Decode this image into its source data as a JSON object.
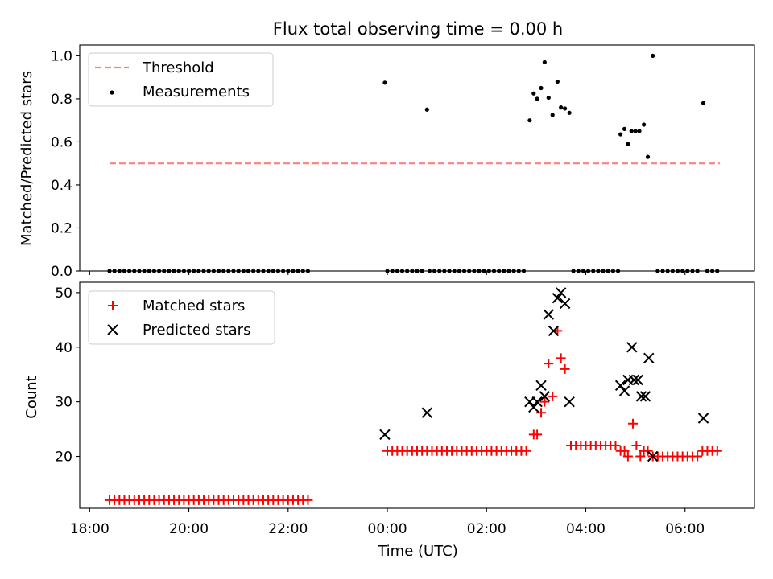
{
  "figure": {
    "title": "Flux total observing time = 0.00 h",
    "xlabel": "Time (UTC)",
    "x_ticks": [
      "18:00",
      "20:00",
      "22:00",
      "00:00",
      "02:00",
      "04:00",
      "06:00"
    ]
  },
  "chart_data": [
    {
      "type": "scatter",
      "title": "Flux total observing time = 0.00 h",
      "xlabel": "Time (UTC)",
      "ylabel": "Matched/Predicted stars",
      "x_unit": "hours after 18:00 UTC",
      "xlim": [
        17.8,
        31.4
      ],
      "ylim": [
        0.0,
        1.05
      ],
      "yticks": [
        0.0,
        0.2,
        0.4,
        0.6,
        0.8,
        1.0
      ],
      "ytick_labels": [
        "0.0",
        "0.2",
        "0.4",
        "0.6",
        "0.8",
        "1.0"
      ],
      "legend": {
        "location": "upper-left",
        "entries": [
          "Threshold",
          "Measurements"
        ]
      },
      "threshold": {
        "name": "Threshold",
        "style": "dashed",
        "color": "#ff7f7f",
        "y": 0.5,
        "x_range": [
          18.4,
          30.7
        ]
      },
      "series": [
        {
          "name": "Measurements",
          "color": "#000000",
          "points": [
            [
              18.4,
              0
            ],
            [
              18.5,
              0
            ],
            [
              18.6,
              0
            ],
            [
              18.7,
              0
            ],
            [
              18.8,
              0
            ],
            [
              18.9,
              0
            ],
            [
              19.0,
              0
            ],
            [
              19.1,
              0
            ],
            [
              19.2,
              0
            ],
            [
              19.3,
              0
            ],
            [
              19.4,
              0
            ],
            [
              19.5,
              0
            ],
            [
              19.6,
              0
            ],
            [
              19.7,
              0
            ],
            [
              19.8,
              0
            ],
            [
              19.9,
              0
            ],
            [
              20.0,
              0
            ],
            [
              20.1,
              0
            ],
            [
              20.2,
              0
            ],
            [
              20.3,
              0
            ],
            [
              20.4,
              0
            ],
            [
              20.5,
              0
            ],
            [
              20.6,
              0
            ],
            [
              20.7,
              0
            ],
            [
              20.8,
              0
            ],
            [
              20.9,
              0
            ],
            [
              21.0,
              0
            ],
            [
              21.1,
              0
            ],
            [
              21.2,
              0
            ],
            [
              21.3,
              0
            ],
            [
              21.4,
              0
            ],
            [
              21.5,
              0
            ],
            [
              21.6,
              0
            ],
            [
              21.7,
              0
            ],
            [
              21.8,
              0
            ],
            [
              21.9,
              0
            ],
            [
              22.0,
              0
            ],
            [
              22.1,
              0
            ],
            [
              22.2,
              0
            ],
            [
              22.3,
              0
            ],
            [
              22.4,
              0
            ],
            [
              23.95,
              0.875
            ],
            [
              24.0,
              0
            ],
            [
              24.1,
              0
            ],
            [
              24.2,
              0
            ],
            [
              24.3,
              0
            ],
            [
              24.4,
              0
            ],
            [
              24.5,
              0
            ],
            [
              24.6,
              0
            ],
            [
              24.7,
              0
            ],
            [
              24.8,
              0.75
            ],
            [
              24.85,
              0
            ],
            [
              24.95,
              0
            ],
            [
              25.05,
              0
            ],
            [
              25.15,
              0
            ],
            [
              25.25,
              0
            ],
            [
              25.35,
              0
            ],
            [
              25.45,
              0
            ],
            [
              25.55,
              0
            ],
            [
              25.65,
              0
            ],
            [
              25.75,
              0
            ],
            [
              25.85,
              0
            ],
            [
              25.95,
              0
            ],
            [
              26.05,
              0
            ],
            [
              26.15,
              0
            ],
            [
              26.25,
              0
            ],
            [
              26.35,
              0
            ],
            [
              26.45,
              0
            ],
            [
              26.55,
              0
            ],
            [
              26.65,
              0
            ],
            [
              26.75,
              0
            ],
            [
              26.87,
              0.7
            ],
            [
              26.95,
              0.825
            ],
            [
              27.02,
              0.8
            ],
            [
              27.1,
              0.85
            ],
            [
              27.17,
              0.97
            ],
            [
              27.25,
              0.805
            ],
            [
              27.33,
              0.725
            ],
            [
              27.43,
              0.88
            ],
            [
              27.5,
              0.76
            ],
            [
              27.58,
              0.755
            ],
            [
              27.67,
              0.735
            ],
            [
              27.75,
              0
            ],
            [
              27.85,
              0
            ],
            [
              27.95,
              0
            ],
            [
              28.05,
              0
            ],
            [
              28.15,
              0
            ],
            [
              28.25,
              0
            ],
            [
              28.35,
              0
            ],
            [
              28.45,
              0
            ],
            [
              28.55,
              0
            ],
            [
              28.65,
              0
            ],
            [
              28.7,
              0.635
            ],
            [
              28.78,
              0.66
            ],
            [
              28.85,
              0.59
            ],
            [
              28.92,
              0.65
            ],
            [
              29.0,
              0.65
            ],
            [
              29.08,
              0.65
            ],
            [
              29.17,
              0.68
            ],
            [
              29.25,
              0.53
            ],
            [
              29.35,
              1.0
            ],
            [
              29.45,
              0
            ],
            [
              29.55,
              0
            ],
            [
              29.65,
              0
            ],
            [
              29.75,
              0
            ],
            [
              29.85,
              0
            ],
            [
              29.95,
              0
            ],
            [
              30.05,
              0
            ],
            [
              30.15,
              0
            ],
            [
              30.25,
              0
            ],
            [
              30.37,
              0.78
            ],
            [
              30.45,
              0
            ],
            [
              30.55,
              0
            ],
            [
              30.65,
              0
            ]
          ]
        }
      ]
    },
    {
      "type": "scatter",
      "title": "",
      "xlabel": "Time (UTC)",
      "ylabel": "Count",
      "x_unit": "hours after 18:00 UTC",
      "xlim": [
        17.8,
        31.4
      ],
      "ylim": [
        10.5,
        51.9
      ],
      "yticks": [
        20,
        30,
        40,
        50
      ],
      "ytick_labels": [
        "20",
        "30",
        "40",
        "50"
      ],
      "legend": {
        "location": "upper-left",
        "entries": [
          "Matched stars",
          "Predicted stars"
        ]
      },
      "series": [
        {
          "name": "Matched stars",
          "marker": "plus",
          "color": "#ff0000",
          "points": [
            [
              18.4,
              12
            ],
            [
              18.5,
              12
            ],
            [
              18.6,
              12
            ],
            [
              18.7,
              12
            ],
            [
              18.8,
              12
            ],
            [
              18.9,
              12
            ],
            [
              19.0,
              12
            ],
            [
              19.1,
              12
            ],
            [
              19.2,
              12
            ],
            [
              19.3,
              12
            ],
            [
              19.4,
              12
            ],
            [
              19.5,
              12
            ],
            [
              19.6,
              12
            ],
            [
              19.7,
              12
            ],
            [
              19.8,
              12
            ],
            [
              19.9,
              12
            ],
            [
              20.0,
              12
            ],
            [
              20.1,
              12
            ],
            [
              20.2,
              12
            ],
            [
              20.3,
              12
            ],
            [
              20.4,
              12
            ],
            [
              20.5,
              12
            ],
            [
              20.6,
              12
            ],
            [
              20.7,
              12
            ],
            [
              20.8,
              12
            ],
            [
              20.9,
              12
            ],
            [
              21.0,
              12
            ],
            [
              21.1,
              12
            ],
            [
              21.2,
              12
            ],
            [
              21.3,
              12
            ],
            [
              21.4,
              12
            ],
            [
              21.5,
              12
            ],
            [
              21.6,
              12
            ],
            [
              21.7,
              12
            ],
            [
              21.8,
              12
            ],
            [
              21.9,
              12
            ],
            [
              22.0,
              12
            ],
            [
              22.1,
              12
            ],
            [
              22.2,
              12
            ],
            [
              22.3,
              12
            ],
            [
              22.4,
              12
            ],
            [
              24.0,
              21
            ],
            [
              24.1,
              21
            ],
            [
              24.2,
              21
            ],
            [
              24.3,
              21
            ],
            [
              24.4,
              21
            ],
            [
              24.5,
              21
            ],
            [
              24.6,
              21
            ],
            [
              24.7,
              21
            ],
            [
              24.8,
              21
            ],
            [
              24.9,
              21
            ],
            [
              25.0,
              21
            ],
            [
              25.1,
              21
            ],
            [
              25.2,
              21
            ],
            [
              25.3,
              21
            ],
            [
              25.4,
              21
            ],
            [
              25.5,
              21
            ],
            [
              25.6,
              21
            ],
            [
              25.7,
              21
            ],
            [
              25.8,
              21
            ],
            [
              25.9,
              21
            ],
            [
              26.0,
              21
            ],
            [
              26.1,
              21
            ],
            [
              26.2,
              21
            ],
            [
              26.3,
              21
            ],
            [
              26.4,
              21
            ],
            [
              26.5,
              21
            ],
            [
              26.6,
              21
            ],
            [
              26.7,
              21
            ],
            [
              26.8,
              21
            ],
            [
              26.95,
              24
            ],
            [
              27.02,
              24
            ],
            [
              27.1,
              28
            ],
            [
              27.17,
              30
            ],
            [
              27.25,
              37
            ],
            [
              27.33,
              31
            ],
            [
              27.43,
              43
            ],
            [
              27.5,
              38
            ],
            [
              27.58,
              36
            ],
            [
              27.7,
              22
            ],
            [
              27.8,
              22
            ],
            [
              27.9,
              22
            ],
            [
              28.0,
              22
            ],
            [
              28.1,
              22
            ],
            [
              28.2,
              22
            ],
            [
              28.3,
              22
            ],
            [
              28.4,
              22
            ],
            [
              28.5,
              22
            ],
            [
              28.6,
              22
            ],
            [
              28.7,
              21
            ],
            [
              28.78,
              21
            ],
            [
              28.85,
              20
            ],
            [
              28.95,
              26
            ],
            [
              29.02,
              22
            ],
            [
              29.1,
              20
            ],
            [
              29.17,
              21
            ],
            [
              29.25,
              21
            ],
            [
              29.35,
              20
            ],
            [
              29.45,
              20
            ],
            [
              29.55,
              20
            ],
            [
              29.65,
              20
            ],
            [
              29.75,
              20
            ],
            [
              29.85,
              20
            ],
            [
              29.95,
              20
            ],
            [
              30.05,
              20
            ],
            [
              30.15,
              20
            ],
            [
              30.25,
              20
            ],
            [
              30.35,
              21
            ],
            [
              30.45,
              21
            ],
            [
              30.55,
              21
            ],
            [
              30.65,
              21
            ]
          ]
        },
        {
          "name": "Predicted stars",
          "marker": "x",
          "color": "#000000",
          "points": [
            [
              23.95,
              24
            ],
            [
              24.8,
              28
            ],
            [
              26.87,
              30
            ],
            [
              26.95,
              29
            ],
            [
              27.02,
              30
            ],
            [
              27.1,
              33
            ],
            [
              27.17,
              31
            ],
            [
              27.25,
              46
            ],
            [
              27.35,
              43
            ],
            [
              27.43,
              49
            ],
            [
              27.5,
              50
            ],
            [
              27.58,
              48
            ],
            [
              27.67,
              30
            ],
            [
              28.7,
              33
            ],
            [
              28.78,
              32
            ],
            [
              28.85,
              34
            ],
            [
              28.93,
              40
            ],
            [
              28.97,
              34
            ],
            [
              29.05,
              34
            ],
            [
              29.12,
              31
            ],
            [
              29.2,
              31
            ],
            [
              29.27,
              38
            ],
            [
              29.35,
              20
            ],
            [
              30.37,
              27
            ]
          ]
        }
      ]
    }
  ]
}
